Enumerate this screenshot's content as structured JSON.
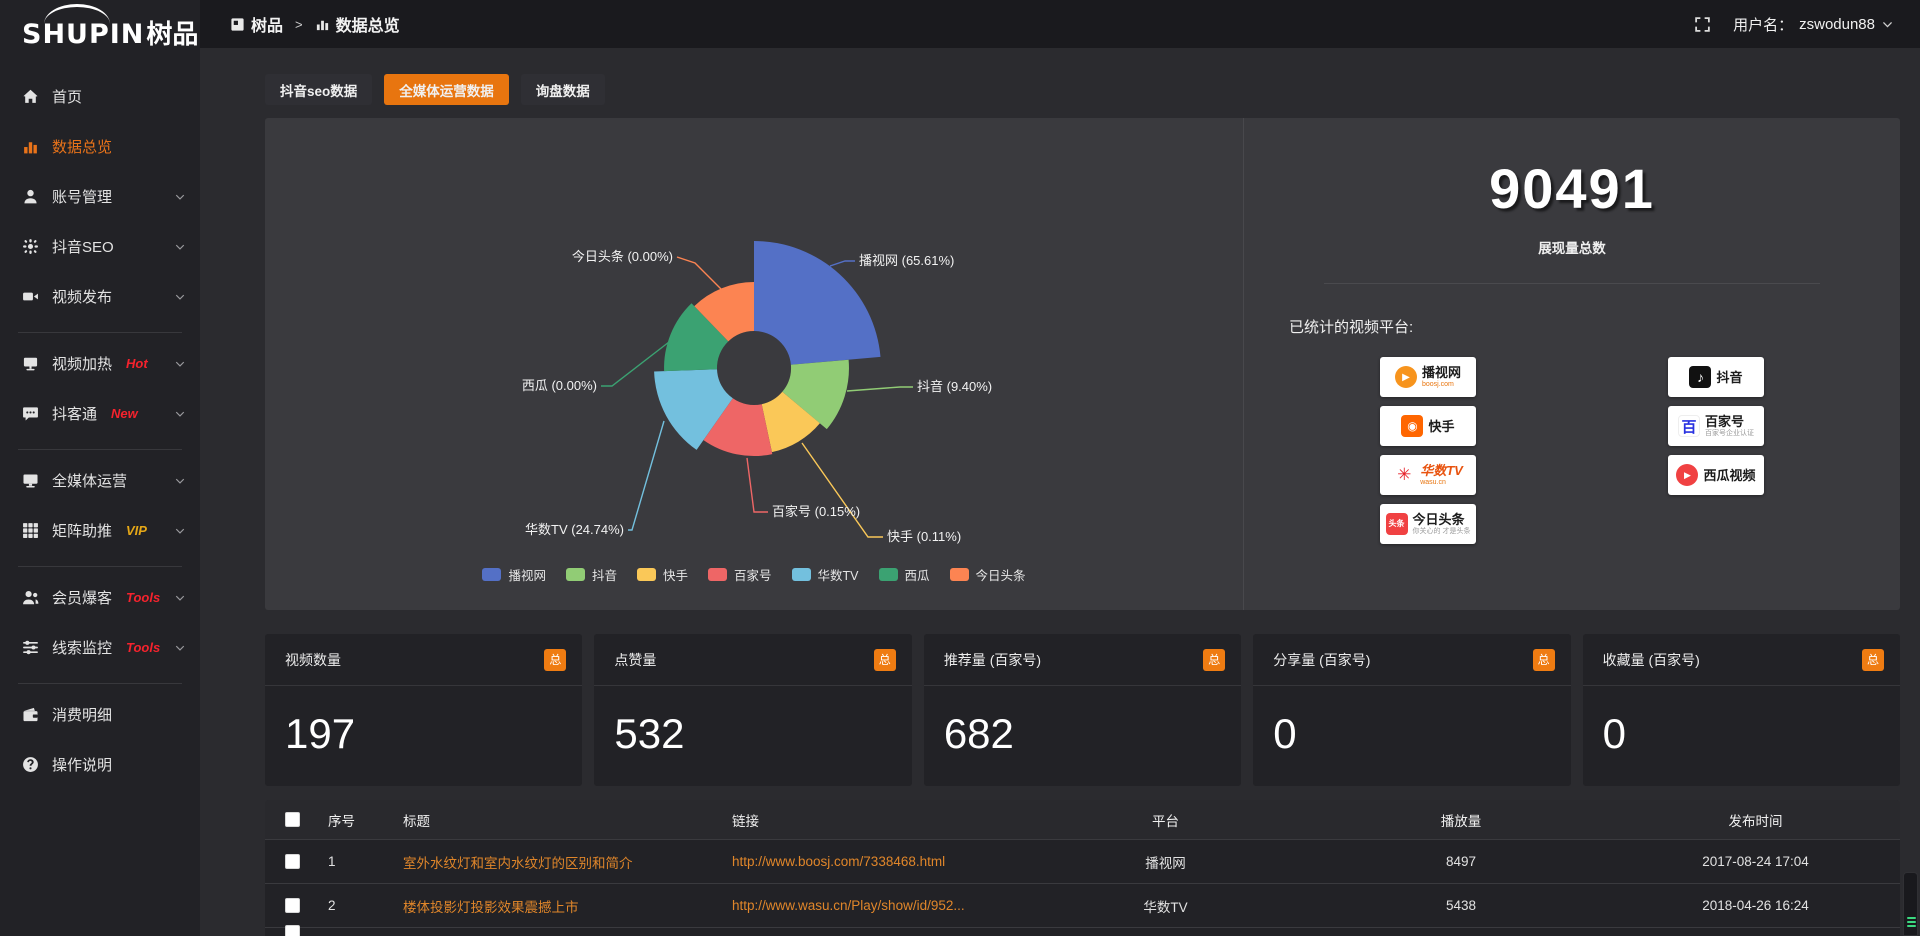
{
  "logo": {
    "text_en": "SHUPIN",
    "text_cn": "树品"
  },
  "topbar": {
    "breadcrumb_root": "树品",
    "breadcrumb_sep": ">",
    "breadcrumb_current": "数据总览",
    "username_label": "用户名：",
    "username": "zswodun88"
  },
  "sidebar": {
    "items": [
      {
        "icon": "home-icon",
        "label": "首页",
        "active": false,
        "chevron": false,
        "tag": "",
        "tag_color": "",
        "divider_after": false
      },
      {
        "icon": "chart-bar-icon",
        "label": "数据总览",
        "active": true,
        "chevron": false,
        "tag": "",
        "tag_color": "",
        "divider_after": false
      },
      {
        "icon": "user-icon",
        "label": "账号管理",
        "active": false,
        "chevron": true,
        "tag": "",
        "tag_color": "",
        "divider_after": false
      },
      {
        "icon": "gear-icon",
        "label": "抖音SEO",
        "active": false,
        "chevron": true,
        "tag": "",
        "tag_color": "",
        "divider_after": false
      },
      {
        "icon": "video-icon",
        "label": "视频发布",
        "active": false,
        "chevron": true,
        "tag": "",
        "tag_color": "",
        "divider_after": true
      },
      {
        "icon": "heat-icon",
        "label": "视频加热",
        "active": false,
        "chevron": true,
        "tag": "Hot",
        "tag_color": "#f5222d",
        "divider_after": false
      },
      {
        "icon": "chat-icon",
        "label": "抖客通",
        "active": false,
        "chevron": true,
        "tag": "New",
        "tag_color": "#f5222d",
        "divider_after": true
      },
      {
        "icon": "monitor-icon",
        "label": "全媒体运营",
        "active": false,
        "chevron": true,
        "tag": "",
        "tag_color": "",
        "divider_after": false
      },
      {
        "icon": "grid-icon",
        "label": "矩阵助推",
        "active": false,
        "chevron": true,
        "tag": "VIP",
        "tag_color": "#e6a817",
        "divider_after": true
      },
      {
        "icon": "users-icon",
        "label": "会员爆客",
        "active": false,
        "chevron": true,
        "tag": "Tools",
        "tag_color": "#f5222d",
        "divider_after": false
      },
      {
        "icon": "sliders-icon",
        "label": "线索监控",
        "active": false,
        "chevron": true,
        "tag": "Tools",
        "tag_color": "#f5222d",
        "divider_after": true
      },
      {
        "icon": "wallet-icon",
        "label": "消费明细",
        "active": false,
        "chevron": false,
        "tag": "",
        "tag_color": "",
        "divider_after": false
      },
      {
        "icon": "help-icon",
        "label": "操作说明",
        "active": false,
        "chevron": false,
        "tag": "",
        "tag_color": "",
        "divider_after": false
      }
    ]
  },
  "tabs": [
    {
      "label": "抖音seo数据",
      "active": false
    },
    {
      "label": "全媒体运营数据",
      "active": true
    },
    {
      "label": "询盘数据",
      "active": false
    }
  ],
  "chart_data": {
    "type": "pie",
    "variant": "nightingale-rose",
    "label_format": "{name} ({percent}%)",
    "legend_position": "bottom",
    "items": [
      {
        "name": "播视网",
        "percent": "65.61",
        "color": "#5470c6"
      },
      {
        "name": "抖音",
        "percent": "9.40",
        "color": "#91cc75"
      },
      {
        "name": "快手",
        "percent": "0.11",
        "color": "#fac858"
      },
      {
        "name": "百家号",
        "percent": "0.15",
        "color": "#ee6666"
      },
      {
        "name": "华数TV",
        "percent": "24.74",
        "color": "#73c0de"
      },
      {
        "name": "西瓜",
        "percent": "0.00",
        "color": "#3ba272"
      },
      {
        "name": "今日头条",
        "percent": "0.00",
        "color": "#fc8452"
      }
    ]
  },
  "summary": {
    "total": "90491",
    "total_label": "展现量总数",
    "platforms_label": "已统计的视频平台:",
    "platforms": [
      {
        "name": "播视网",
        "sub": "boosj.com",
        "logo": "boosj"
      },
      {
        "name": "抖音",
        "sub": "",
        "logo": "douyin"
      },
      {
        "name": "快手",
        "sub": "",
        "logo": "kuaishou"
      },
      {
        "name": "百家号",
        "sub": "百家号企业认证",
        "logo": "baijiahao"
      },
      {
        "name": "华数TV",
        "sub": "wasu.cn",
        "logo": "wasu"
      },
      {
        "name": "西瓜视频",
        "sub": "",
        "logo": "xigua"
      },
      {
        "name": "今日头条",
        "sub": "你关心的 才是头条",
        "logo": "toutiao"
      }
    ]
  },
  "stat_cards": [
    {
      "title": "视频数量",
      "badge": "总",
      "value": "197"
    },
    {
      "title": "点赞量",
      "badge": "总",
      "value": "532"
    },
    {
      "title": "推荐量 (百家号)",
      "badge": "总",
      "value": "682"
    },
    {
      "title": "分享量 (百家号)",
      "badge": "总",
      "value": "0"
    },
    {
      "title": "收藏量 (百家号)",
      "badge": "总",
      "value": "0"
    }
  ],
  "table": {
    "headers": [
      "序号",
      "标题",
      "链接",
      "平台",
      "播放量",
      "发布时间"
    ],
    "rows": [
      {
        "index": "1",
        "title": "室外水纹灯和室内水纹灯的区别和简介",
        "link": "http://www.boosj.com/7338468.html",
        "platform": "播视网",
        "plays": "8497",
        "published": "2017-08-24 17:04"
      },
      {
        "index": "2",
        "title": "楼体投影灯投影效果震撼上市",
        "link": "http://www.wasu.cn/Play/show/id/952...",
        "platform": "华数TV",
        "plays": "5438",
        "published": "2018-04-26 16:24"
      }
    ]
  },
  "colors": {
    "accent_orange": "#e8750f",
    "link_orange": "#e0862a",
    "badge_orange": "#ef7c12",
    "hot_red": "#f5222d",
    "vip_yellow": "#e6a817",
    "panel_bg": "#3a3a3e",
    "card_bg": "#222226",
    "page_bg": "#2b2b2f"
  }
}
